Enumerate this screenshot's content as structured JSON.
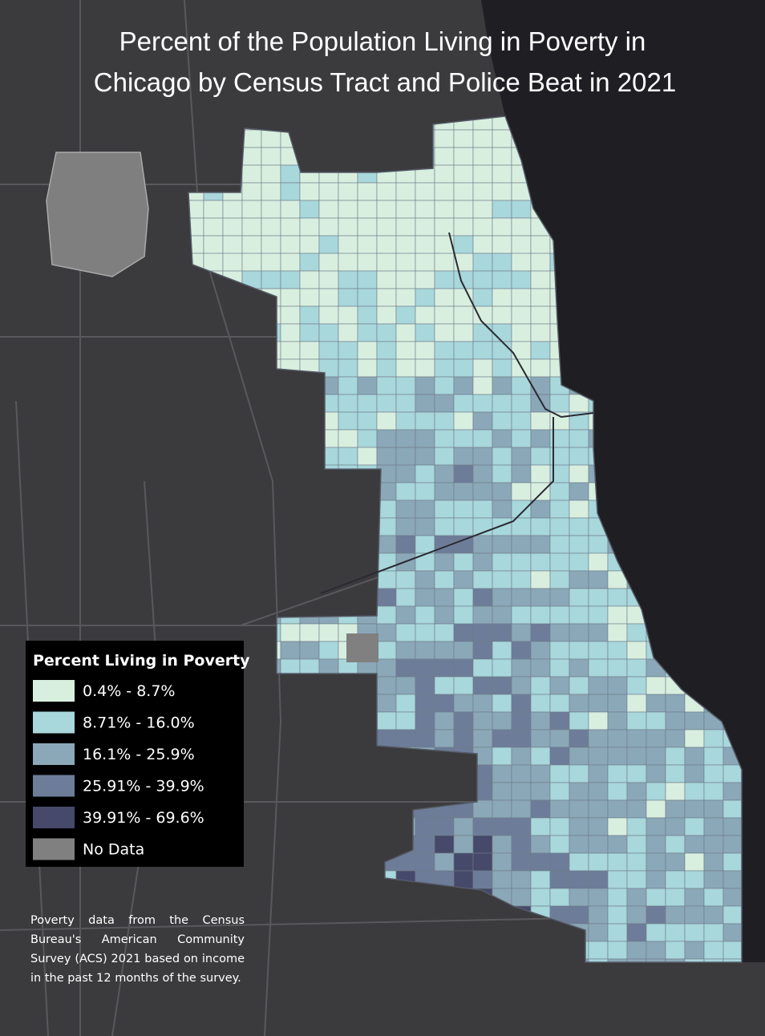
{
  "title_lines": [
    "Percent of the Population Living in Poverty in",
    "Chicago by Census Tract and Police Beat in 2021"
  ],
  "legend": {
    "title": "Percent Living in Poverty",
    "items": [
      {
        "label": "0.4% - 8.7%",
        "color": "#d8efe0"
      },
      {
        "label": "8.71% - 16.0%",
        "color": "#a8d7dc"
      },
      {
        "label": "16.1% - 25.9%",
        "color": "#8aa8b8"
      },
      {
        "label": "25.91% - 39.9%",
        "color": "#6d7d99"
      },
      {
        "label": "39.91% - 69.6%",
        "color": "#46496a"
      },
      {
        "label": "No Data",
        "color": "#808080"
      }
    ]
  },
  "note": "Poverty data from the Census Bureau's American Community Survey (ACS) 2021 based on income in the past 12 months of the survey."
}
